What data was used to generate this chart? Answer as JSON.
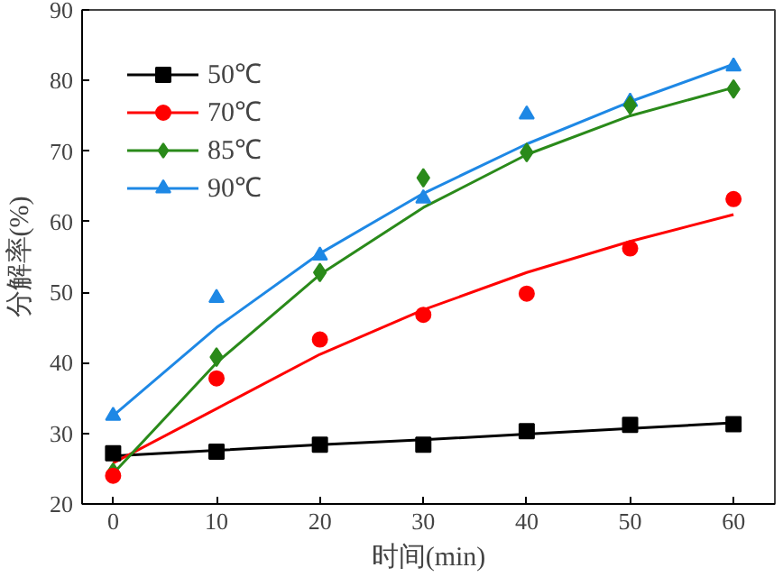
{
  "chart_data": {
    "type": "scatter",
    "xlabel": "时间(min)",
    "ylabel": "分解率(%)",
    "xlim": [
      -3,
      64
    ],
    "ylim": [
      20,
      90
    ],
    "xticks": [
      0,
      10,
      20,
      30,
      40,
      50,
      60
    ],
    "yticks": [
      20,
      30,
      40,
      50,
      60,
      70,
      80,
      90
    ],
    "grid": false,
    "legend": "top left",
    "x": [
      0,
      10,
      20,
      30,
      40,
      50,
      60
    ],
    "series": [
      {
        "name": "50℃",
        "color": "#000000",
        "marker": "square",
        "values": [
          27.2,
          27.4,
          28.4,
          28.4,
          30.3,
          31.2,
          31.3
        ]
      },
      {
        "name": "70℃",
        "color": "#ff0000",
        "marker": "circle",
        "values": [
          24.0,
          37.8,
          43.3,
          46.8,
          49.8,
          56.2,
          63.2
        ]
      },
      {
        "name": "85℃",
        "color": "#2a8a1a",
        "marker": "diamond",
        "values": [
          24.5,
          40.8,
          52.8,
          66.2,
          69.8,
          76.5,
          78.8
        ]
      },
      {
        "name": "90℃",
        "color": "#1e88e5",
        "marker": "triangle",
        "values": [
          32.5,
          49.2,
          55.2,
          63.3,
          75.2,
          77.0,
          82.0
        ]
      },
      {
        "type": "line",
        "color": "#000000",
        "x": [
          0,
          10,
          20,
          30,
          40,
          50,
          60
        ],
        "values": [
          26.8,
          27.6,
          28.4,
          29.1,
          29.9,
          30.7,
          31.5
        ]
      },
      {
        "type": "line",
        "color": "#ff0000",
        "x": [
          0,
          10,
          20,
          30,
          40,
          50,
          60
        ],
        "values": [
          25.8,
          33.5,
          41.2,
          47.5,
          52.8,
          57.2,
          61.0
        ]
      },
      {
        "type": "line",
        "color": "#2a8a1a",
        "x": [
          0,
          10,
          20,
          30,
          40,
          50,
          60
        ],
        "values": [
          24.3,
          40.0,
          52.5,
          62.0,
          69.5,
          75.0,
          79.0
        ]
      },
      {
        "type": "line",
        "color": "#1e88e5",
        "x": [
          0,
          10,
          20,
          30,
          40,
          50,
          60
        ],
        "values": [
          32.5,
          45.0,
          55.5,
          64.0,
          71.0,
          77.0,
          82.3
        ]
      }
    ]
  }
}
